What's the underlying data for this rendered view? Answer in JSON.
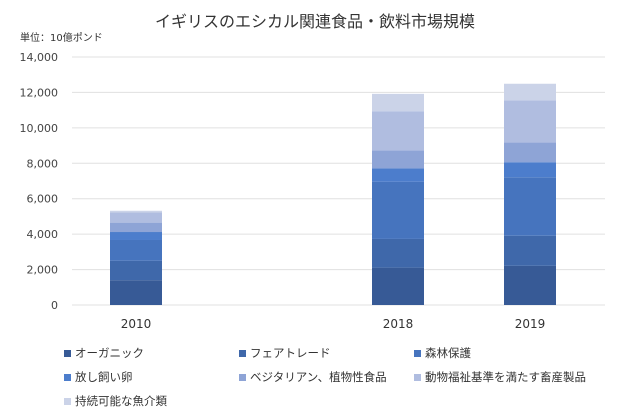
{
  "chart_data": {
    "type": "bar",
    "stacked": true,
    "title": "イギリスのエシカル関連食品・飲料市場規模",
    "unit_label": "単位：10億ポンド",
    "categories": [
      "2010",
      "2018",
      "2019"
    ],
    "ylim": [
      0,
      14000
    ],
    "yticks": [
      "0",
      "2,000",
      "4,000",
      "6,000",
      "8,000",
      "10,000",
      "12,000",
      "14,000"
    ],
    "ytick_values": [
      0,
      2000,
      4000,
      6000,
      8000,
      10000,
      12000,
      14000
    ],
    "grid": true,
    "legend_position": "bottom",
    "series": [
      {
        "name": "オーガニック",
        "color": "#375a96",
        "values": [
          1400,
          2110,
          2210
        ]
      },
      {
        "name": "フェアトレード",
        "color": "#3f68aa",
        "values": [
          1100,
          1620,
          1700
        ]
      },
      {
        "name": "森林保護",
        "color": "#4674be",
        "values": [
          1170,
          3230,
          3300
        ]
      },
      {
        "name": "放し飼い卵",
        "color": "#4c7dcc",
        "values": [
          450,
          750,
          850
        ]
      },
      {
        "name": "ベジタリアン、植物性食品",
        "color": "#8ea4d6",
        "values": [
          530,
          1020,
          1110
        ]
      },
      {
        "name": "動物福祉基準を満たす畜産製品",
        "color": "#b0bde0",
        "values": [
          570,
          2210,
          2380
        ]
      },
      {
        "name": "持続可能な魚介類",
        "color": "#cbd3e8",
        "values": [
          100,
          980,
          940
        ]
      }
    ]
  }
}
